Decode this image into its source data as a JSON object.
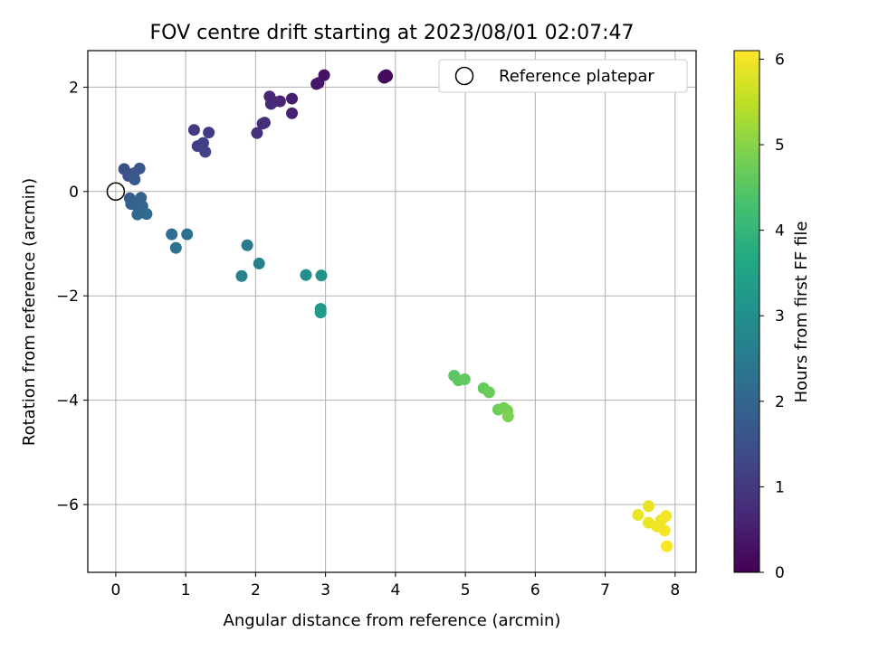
{
  "chart_data": {
    "type": "scatter",
    "title": "FOV centre drift starting at 2023/08/01 02:07:47",
    "xlabel": "Angular distance from reference (arcmin)",
    "ylabel": "Rotation from reference (arcmin)",
    "xlim": [
      -0.4,
      8.3
    ],
    "ylim": [
      -7.3,
      2.7
    ],
    "xticks": [
      0,
      1,
      2,
      3,
      4,
      5,
      6,
      7,
      8
    ],
    "yticks": [
      -6,
      -4,
      -2,
      0,
      2
    ],
    "grid": true,
    "legend": {
      "position": "top-right",
      "entries": [
        "Reference platepar"
      ]
    },
    "reference_point": {
      "x": 0,
      "y": 0,
      "label": "Reference platepar"
    },
    "colorbar": {
      "label": "Hours from first FF file",
      "colormap": "viridis",
      "range": [
        0,
        6.1
      ],
      "ticks": [
        0,
        1,
        2,
        3,
        4,
        5,
        6
      ]
    },
    "points": [
      {
        "x": 3.86,
        "y": 2.2,
        "c": 0.05
      },
      {
        "x": 3.84,
        "y": 2.18,
        "c": 0.08
      },
      {
        "x": 3.88,
        "y": 2.21,
        "c": 0.1
      },
      {
        "x": 3.83,
        "y": 2.19,
        "c": 0.12
      },
      {
        "x": 3.87,
        "y": 2.23,
        "c": 0.15
      },
      {
        "x": 3.85,
        "y": 2.22,
        "c": 0.18
      },
      {
        "x": 2.98,
        "y": 2.23,
        "c": 0.3
      },
      {
        "x": 2.9,
        "y": 2.08,
        "c": 0.35
      },
      {
        "x": 2.87,
        "y": 2.06,
        "c": 0.4
      },
      {
        "x": 2.52,
        "y": 1.78,
        "c": 0.5
      },
      {
        "x": 2.52,
        "y": 1.5,
        "c": 0.55
      },
      {
        "x": 2.35,
        "y": 1.73,
        "c": 0.6
      },
      {
        "x": 2.2,
        "y": 1.82,
        "c": 0.65
      },
      {
        "x": 2.22,
        "y": 1.68,
        "c": 0.7
      },
      {
        "x": 2.26,
        "y": 1.72,
        "c": 0.72
      },
      {
        "x": 2.13,
        "y": 1.32,
        "c": 0.78
      },
      {
        "x": 2.1,
        "y": 1.3,
        "c": 0.8
      },
      {
        "x": 2.02,
        "y": 1.12,
        "c": 0.85
      },
      {
        "x": 1.12,
        "y": 1.18,
        "c": 1.0
      },
      {
        "x": 1.33,
        "y": 1.13,
        "c": 1.05
      },
      {
        "x": 1.17,
        "y": 0.87,
        "c": 1.1
      },
      {
        "x": 1.25,
        "y": 0.93,
        "c": 1.15
      },
      {
        "x": 1.28,
        "y": 0.76,
        "c": 1.2
      },
      {
        "x": 0.12,
        "y": 0.43,
        "c": 1.5
      },
      {
        "x": 0.18,
        "y": 0.3,
        "c": 1.55
      },
      {
        "x": 0.26,
        "y": 0.35,
        "c": 1.6
      },
      {
        "x": 0.34,
        "y": 0.44,
        "c": 1.65
      },
      {
        "x": 0.27,
        "y": 0.23,
        "c": 1.7
      },
      {
        "x": 0.2,
        "y": -0.13,
        "c": 1.8
      },
      {
        "x": 0.22,
        "y": -0.24,
        "c": 1.85
      },
      {
        "x": 0.36,
        "y": -0.12,
        "c": 1.9
      },
      {
        "x": 0.3,
        "y": -0.27,
        "c": 1.95
      },
      {
        "x": 0.38,
        "y": -0.28,
        "c": 2.0
      },
      {
        "x": 0.31,
        "y": -0.44,
        "c": 2.05
      },
      {
        "x": 0.44,
        "y": -0.43,
        "c": 2.1
      },
      {
        "x": 0.8,
        "y": -0.82,
        "c": 2.2
      },
      {
        "x": 1.02,
        "y": -0.82,
        "c": 2.25
      },
      {
        "x": 0.86,
        "y": -1.08,
        "c": 2.3
      },
      {
        "x": 1.88,
        "y": -1.03,
        "c": 2.5
      },
      {
        "x": 2.05,
        "y": -1.38,
        "c": 2.6
      },
      {
        "x": 1.8,
        "y": -1.62,
        "c": 2.7
      },
      {
        "x": 2.72,
        "y": -1.6,
        "c": 3.0
      },
      {
        "x": 2.94,
        "y": -1.61,
        "c": 3.1
      },
      {
        "x": 2.93,
        "y": -2.25,
        "c": 3.2
      },
      {
        "x": 2.93,
        "y": -2.32,
        "c": 3.3
      },
      {
        "x": 4.84,
        "y": -3.53,
        "c": 4.5
      },
      {
        "x": 4.9,
        "y": -3.62,
        "c": 4.55
      },
      {
        "x": 4.99,
        "y": -3.6,
        "c": 4.6
      },
      {
        "x": 5.26,
        "y": -3.77,
        "c": 4.65
      },
      {
        "x": 5.34,
        "y": -3.85,
        "c": 4.7
      },
      {
        "x": 5.47,
        "y": -4.18,
        "c": 4.75
      },
      {
        "x": 5.55,
        "y": -4.15,
        "c": 4.8
      },
      {
        "x": 5.6,
        "y": -4.2,
        "c": 4.85
      },
      {
        "x": 5.61,
        "y": -4.31,
        "c": 4.9
      },
      {
        "x": 7.62,
        "y": -6.03,
        "c": 5.9
      },
      {
        "x": 7.47,
        "y": -6.2,
        "c": 5.92
      },
      {
        "x": 7.62,
        "y": -6.35,
        "c": 5.94
      },
      {
        "x": 7.74,
        "y": -6.42,
        "c": 5.96
      },
      {
        "x": 7.8,
        "y": -6.3,
        "c": 5.98
      },
      {
        "x": 7.87,
        "y": -6.22,
        "c": 6.0
      },
      {
        "x": 7.85,
        "y": -6.5,
        "c": 6.02
      },
      {
        "x": 7.88,
        "y": -6.8,
        "c": 6.05
      }
    ]
  }
}
